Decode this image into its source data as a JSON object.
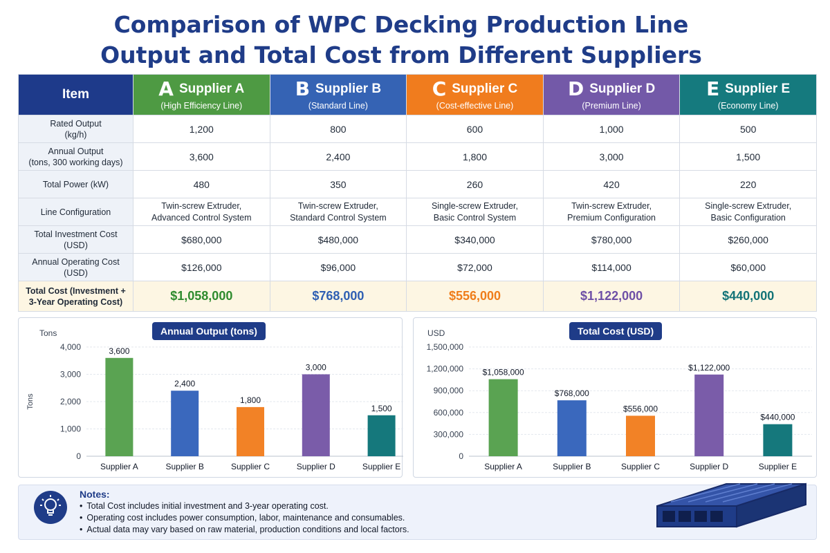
{
  "title_line1": "Comparison of WPC Decking Production Line",
  "title_line2": "Output and Total Cost from Different Suppliers",
  "table": {
    "item_header": "Item",
    "suppliers": [
      {
        "letter": "A",
        "name": "Supplier A",
        "sub": "(High Efficiency Line)",
        "color": "#4e9a43",
        "total_color": "#2e8b2e"
      },
      {
        "letter": "B",
        "name": "Supplier B",
        "sub": "(Standard Line)",
        "color": "#3563b4",
        "total_color": "#2f5fb3"
      },
      {
        "letter": "C",
        "name": "Supplier C",
        "sub": "(Cost-effective Line)",
        "color": "#f07c1e",
        "total_color": "#ef7d1a"
      },
      {
        "letter": "D",
        "name": "Supplier D",
        "sub": "(Premium Line)",
        "color": "#7359a8",
        "total_color": "#6e4fa6"
      },
      {
        "letter": "E",
        "name": "Supplier E",
        "sub": "(Economy Line)",
        "color": "#157a7e",
        "total_color": "#137377"
      }
    ],
    "rows": [
      {
        "label1": "Rated Output",
        "label2": "(kg/h)",
        "values": [
          "1,200",
          "800",
          "600",
          "1,000",
          "500"
        ]
      },
      {
        "label1": "Annual Output",
        "label2": "(tons, 300 working days)",
        "values": [
          "3,600",
          "2,400",
          "1,800",
          "3,000",
          "1,500"
        ]
      },
      {
        "label1": "Total Power (kW)",
        "label2": "",
        "values": [
          "480",
          "350",
          "260",
          "420",
          "220"
        ]
      },
      {
        "label1": "Line Configuration",
        "label2": "",
        "values": [
          "Twin-screw Extruder,",
          "Twin-screw Extruder,",
          "Single-screw Extruder,",
          "Twin-screw Extruder,",
          "Single-screw Extruder,"
        ],
        "values2": [
          "Advanced Control System",
          "Standard Control System",
          "Basic Control System",
          "Premium Configuration",
          "Basic Configuration"
        ]
      },
      {
        "label1": "Total Investment Cost",
        "label2": "(USD)",
        "values": [
          "$680,000",
          "$480,000",
          "$340,000",
          "$780,000",
          "$260,000"
        ]
      },
      {
        "label1": "Annual Operating Cost",
        "label2": "(USD)",
        "values": [
          "$126,000",
          "$96,000",
          "$72,000",
          "$114,000",
          "$60,000"
        ]
      }
    ],
    "total_row": {
      "label1": "Total Cost (Investment +",
      "label2": "3-Year Operating Cost)",
      "values": [
        "$1,058,000",
        "$768,000",
        "$556,000",
        "$1,122,000",
        "$440,000"
      ]
    }
  },
  "chart_data": [
    {
      "type": "bar",
      "title": "Annual Output (tons)",
      "unit_label": "Tons",
      "ylabel": "Tons",
      "categories": [
        "Supplier A",
        "Supplier B",
        "Supplier C",
        "Supplier D",
        "Supplier E"
      ],
      "values": [
        3600,
        2400,
        1800,
        3000,
        1500
      ],
      "data_labels": [
        "3,600",
        "2,400",
        "1,800",
        "3,000",
        "1,500"
      ],
      "ylim": [
        0,
        4000
      ],
      "yticks": [
        0,
        1000,
        2000,
        3000,
        4000
      ],
      "ytick_labels": [
        "0",
        "1,000",
        "2,000",
        "3,000",
        "4,000"
      ],
      "colors": [
        "#5aa352",
        "#3a68bd",
        "#f28226",
        "#7a5ca9",
        "#15787c"
      ],
      "grid": true
    },
    {
      "type": "bar",
      "title": "Total Cost (USD)",
      "unit_label": "USD",
      "categories": [
        "Supplier A",
        "Supplier B",
        "Supplier C",
        "Supplier D",
        "Supplier E"
      ],
      "values": [
        1058000,
        768000,
        556000,
        1122000,
        440000
      ],
      "data_labels": [
        "$1,058,000",
        "$768,000",
        "$556,000",
        "$1,122,000",
        "$440,000"
      ],
      "yticks": [
        0,
        300000,
        600000,
        900000,
        1200000,
        1500000
      ],
      "ytick_labels": [
        "0",
        "300,000",
        "600,000",
        "900,000",
        "1,200,000",
        "1,500,000"
      ],
      "ylim": [
        0,
        1500000
      ],
      "colors": [
        "#5aa352",
        "#3a68bd",
        "#f28226",
        "#7a5ca9",
        "#15787c"
      ],
      "grid": true
    }
  ],
  "notes": {
    "title": "Notes:",
    "icon": "lightbulb-icon",
    "items": [
      "Total Cost includes initial investment and 3-year operating cost.",
      "Operating cost includes power consumption, labor, maintenance and consumables.",
      "Actual data may vary based on raw material, production conditions and local factors."
    ]
  }
}
